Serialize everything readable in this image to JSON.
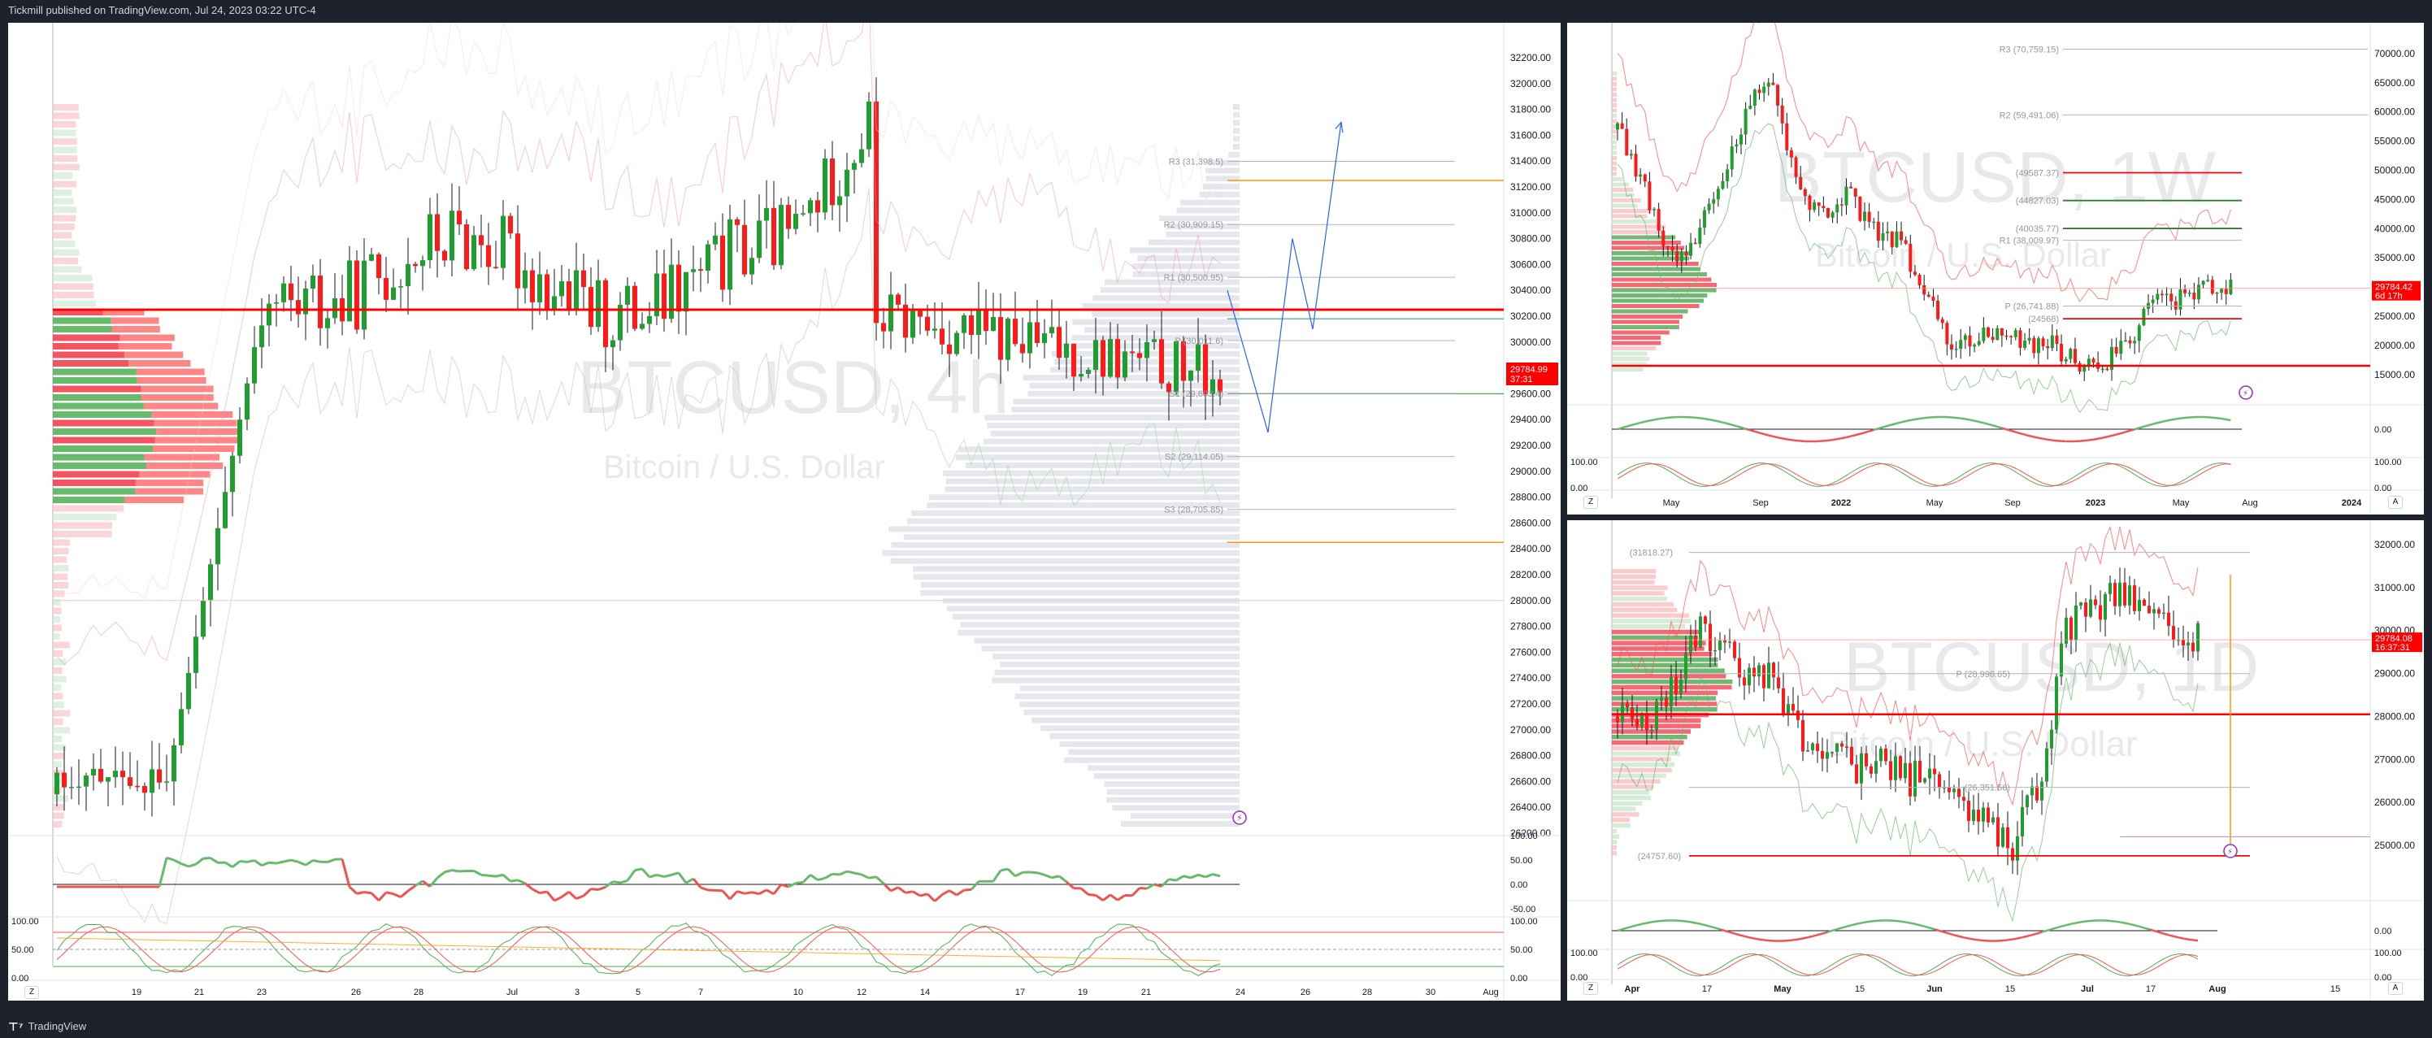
{
  "header": {
    "published": "Tickmill published on TradingView.com, Jul 24, 2023 03:22 UTC-4"
  },
  "footer": {
    "brand": "TradingView"
  },
  "colors": {
    "bull": "#089981",
    "bear": "#f23645",
    "green": "#1e9e2e",
    "red": "#ff0000",
    "orange": "#ff9800",
    "blue": "#2962ff",
    "purple": "#9c27b0"
  },
  "main_chart": {
    "symbol": "BTCUSD, 4h",
    "description": "Bitcoin / U.S. Dollar",
    "price_labels": [
      "32200.00",
      "32000.00",
      "31800.00",
      "31600.00",
      "31400.00",
      "31200.00",
      "31000.00",
      "30800.00",
      "30600.00",
      "30400.00",
      "30200.00",
      "30000.00",
      "29800.00",
      "29600.00",
      "29400.00",
      "29200.00",
      "29000.00",
      "28800.00",
      "28600.00",
      "28400.00",
      "28200.00",
      "28000.00",
      "27800.00",
      "27600.00",
      "27400.00",
      "27200.00",
      "27000.00",
      "26800.00",
      "26600.00",
      "26400.00",
      "26200.00"
    ],
    "current_price": "29784.99",
    "countdown": "37:31",
    "pivots": [
      {
        "label": "R3 (31,398.5)",
        "value": 31398.5
      },
      {
        "label": "R2 (30,909.15)",
        "value": 30909.15
      },
      {
        "label": "R1 (30,500.95)",
        "value": 30500.95
      },
      {
        "label": "P (30,011.6)",
        "value": 30011.6
      },
      {
        "label": "S1 (29,603.4)",
        "value": 29603.4
      },
      {
        "label": "S2 (29,114.05)",
        "value": 29114.05
      },
      {
        "label": "S3 (28,705.85)",
        "value": 28705.85
      }
    ],
    "date_labels": [
      "19",
      "21",
      "23",
      "26",
      "28",
      "Jul",
      "3",
      "5",
      "7",
      "10",
      "12",
      "14",
      "17",
      "19",
      "21",
      "24",
      "26",
      "28",
      "30",
      "Aug"
    ],
    "rsi_labels": [
      "100.00",
      "50.00",
      "0.00",
      "-50.00"
    ],
    "stoch_labels": [
      "100.00",
      "50.00",
      "0.00"
    ]
  },
  "weekly_chart": {
    "symbol": "BTCUSD, 1W",
    "description": "Bitcoin / U.S. Dollar",
    "price_labels": [
      "70000.00",
      "65000.00",
      "60000.00",
      "55000.00",
      "50000.00",
      "45000.00",
      "40000.00",
      "35000.00",
      "30000.00",
      "25000.00",
      "20000.00",
      "15000.00"
    ],
    "current_price": "29784.42",
    "countdown": "6d 17h",
    "levels": [
      {
        "label": "R3 (70,759.15)"
      },
      {
        "label": "R2 (59,491.06)"
      },
      {
        "label": "(49587.37)"
      },
      {
        "label": "(44827.03)"
      },
      {
        "label": "(40035.77)"
      },
      {
        "label": "R1 (38,009.97)"
      },
      {
        "label": "P (26,741.88)"
      },
      {
        "label": "(24568)"
      }
    ],
    "date_labels": [
      "May",
      "Sep",
      "2022",
      "May",
      "Sep",
      "2023",
      "May",
      "Aug",
      "2024"
    ],
    "rsi_labels": [
      "0.00"
    ],
    "stoch_labels": [
      "100.00",
      "0.00"
    ]
  },
  "daily_chart": {
    "symbol": "BTCUSD, 1D",
    "description": "Bitcoin / U.S. Dollar",
    "price_labels": [
      "32000.00",
      "31000.00",
      "30000.00",
      "29000.00",
      "28000.00",
      "27000.00",
      "26000.00",
      "25000.00"
    ],
    "current_price": "29784.08",
    "countdown": "16:37:31",
    "levels": [
      {
        "label": "(31818.27)"
      },
      {
        "label": "P (28,996.65)"
      },
      {
        "label": "(26,351.56)"
      },
      {
        "label": "(24757.60)"
      }
    ],
    "date_labels": [
      "Apr",
      "17",
      "May",
      "15",
      "Jun",
      "15",
      "Jul",
      "17",
      "Aug",
      "15"
    ],
    "rsi_labels": [
      "0.00"
    ],
    "stoch_labels": [
      "100.00",
      "0.00"
    ]
  }
}
